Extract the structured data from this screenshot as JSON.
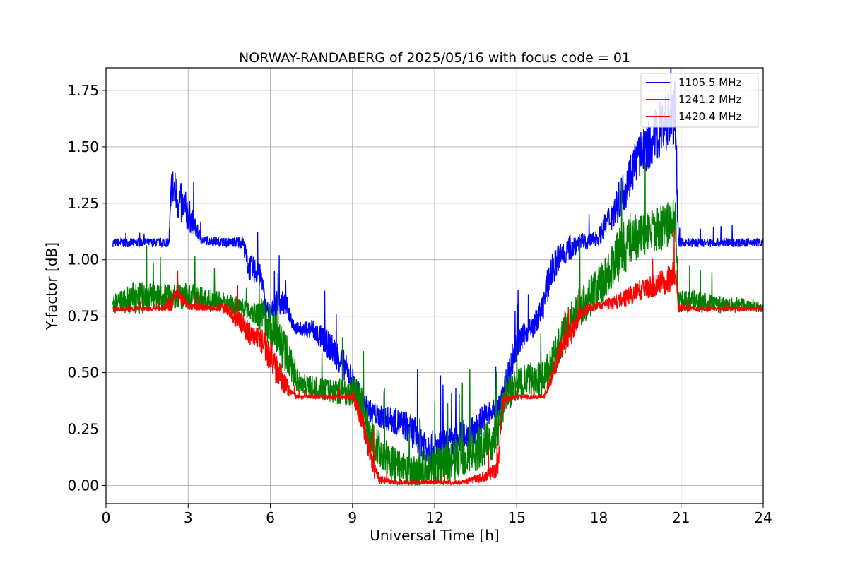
{
  "chart_data": {
    "type": "line",
    "title": "NORWAY-RANDABERG of 2025/05/16 with focus code = 01",
    "xlabel": "Universal Time [h]",
    "ylabel": "Y-factor [dB]",
    "xlim": [
      0,
      24
    ],
    "ylim": [
      -0.08,
      1.85
    ],
    "xticks": [
      0,
      3,
      6,
      9,
      12,
      15,
      18,
      21,
      24
    ],
    "xtick_labels": [
      "0",
      "3",
      "6",
      "9",
      "12",
      "15",
      "18",
      "21",
      "24"
    ],
    "yticks": [
      0.0,
      0.25,
      0.5,
      0.75,
      1.0,
      1.25,
      1.5,
      1.75
    ],
    "ytick_labels": [
      "0.00",
      "0.25",
      "0.50",
      "0.75",
      "1.00",
      "1.25",
      "1.50",
      "1.75"
    ],
    "grid": true,
    "legend_position": "top-right",
    "series": [
      {
        "name": "1105.5 MHz",
        "color": "#0000ff",
        "x": [
          0.25,
          2.3,
          2.4,
          2.7,
          3.0,
          3.3,
          3.5,
          4.5,
          5.0,
          5.2,
          5.5,
          5.7,
          5.8,
          6.0,
          6.3,
          6.6,
          6.9,
          7.2,
          7.5,
          8.0,
          8.5,
          9.0,
          9.3,
          9.6,
          10.0,
          10.5,
          11.0,
          11.5,
          12.0,
          12.5,
          13.0,
          13.5,
          13.7,
          14.0,
          14.3,
          14.5,
          14.8,
          15.0,
          15.3,
          15.6,
          15.9,
          16.2,
          16.5,
          16.8,
          17.0,
          17.3,
          17.6,
          18.0,
          18.3,
          18.6,
          19.0,
          19.3,
          19.6,
          20.0,
          20.3,
          20.6,
          20.8,
          20.9,
          21.5,
          22.5,
          23.5,
          24.0
        ],
        "y": [
          1.07,
          1.07,
          1.3,
          1.22,
          1.18,
          1.12,
          1.08,
          1.07,
          1.07,
          0.95,
          0.93,
          0.9,
          0.78,
          0.75,
          0.8,
          0.78,
          0.69,
          0.68,
          0.68,
          0.62,
          0.55,
          0.45,
          0.36,
          0.32,
          0.29,
          0.27,
          0.24,
          0.18,
          0.12,
          0.15,
          0.2,
          0.22,
          0.28,
          0.3,
          0.32,
          0.38,
          0.52,
          0.6,
          0.66,
          0.69,
          0.75,
          0.9,
          0.98,
          1.02,
          1.04,
          1.07,
          1.07,
          1.09,
          1.15,
          1.2,
          1.3,
          1.4,
          1.45,
          1.5,
          1.55,
          1.58,
          1.6,
          1.07,
          1.07,
          1.07,
          1.07,
          1.07
        ],
        "noise": [
          0.02,
          0.02,
          0.1,
          0.1,
          0.08,
          0.04,
          0.02,
          0.02,
          0.03,
          0.06,
          0.06,
          0.05,
          0.05,
          0.04,
          0.06,
          0.05,
          0.03,
          0.03,
          0.05,
          0.06,
          0.07,
          0.06,
          0.06,
          0.05,
          0.05,
          0.06,
          0.07,
          0.08,
          0.09,
          0.08,
          0.07,
          0.07,
          0.06,
          0.06,
          0.05,
          0.06,
          0.08,
          0.07,
          0.05,
          0.05,
          0.06,
          0.08,
          0.07,
          0.06,
          0.06,
          0.04,
          0.03,
          0.04,
          0.06,
          0.08,
          0.1,
          0.1,
          0.1,
          0.12,
          0.14,
          0.14,
          0.15,
          0.02,
          0.02,
          0.02,
          0.02,
          0.02
        ]
      },
      {
        "name": "1241.2 MHz",
        "color": "#008000",
        "x": [
          0.25,
          1.0,
          2.0,
          3.0,
          4.0,
          5.0,
          5.3,
          5.7,
          6.0,
          6.3,
          6.6,
          7.0,
          7.5,
          8.0,
          8.5,
          9.0,
          9.3,
          9.5,
          9.8,
          10.2,
          10.6,
          11.0,
          11.5,
          12.0,
          12.5,
          13.0,
          13.5,
          14.0,
          14.3,
          14.6,
          15.0,
          15.5,
          16.0,
          16.3,
          16.6,
          16.9,
          17.2,
          17.6,
          18.0,
          18.4,
          18.8,
          19.2,
          19.6,
          20.0,
          20.4,
          20.8,
          20.9,
          21.5,
          22.5,
          23.5,
          24.0
        ],
        "y": [
          0.79,
          0.8,
          0.82,
          0.82,
          0.8,
          0.78,
          0.76,
          0.73,
          0.68,
          0.62,
          0.55,
          0.45,
          0.42,
          0.41,
          0.4,
          0.4,
          0.35,
          0.25,
          0.16,
          0.1,
          0.06,
          0.04,
          0.05,
          0.06,
          0.07,
          0.1,
          0.13,
          0.16,
          0.22,
          0.38,
          0.42,
          0.44,
          0.45,
          0.52,
          0.6,
          0.68,
          0.75,
          0.8,
          0.85,
          0.92,
          1.0,
          1.06,
          1.08,
          1.1,
          1.12,
          1.14,
          0.8,
          0.8,
          0.79,
          0.79,
          0.78
        ],
        "noise": [
          0.04,
          0.08,
          0.06,
          0.06,
          0.05,
          0.04,
          0.05,
          0.08,
          0.1,
          0.1,
          0.09,
          0.06,
          0.05,
          0.05,
          0.06,
          0.07,
          0.08,
          0.09,
          0.09,
          0.08,
          0.08,
          0.07,
          0.08,
          0.09,
          0.09,
          0.1,
          0.1,
          0.1,
          0.09,
          0.08,
          0.08,
          0.08,
          0.08,
          0.09,
          0.09,
          0.09,
          0.09,
          0.09,
          0.1,
          0.1,
          0.12,
          0.12,
          0.1,
          0.1,
          0.1,
          0.1,
          0.05,
          0.05,
          0.04,
          0.03,
          0.02
        ]
      },
      {
        "name": "1420.4 MHz",
        "color": "#ff0000",
        "x": [
          0.25,
          2.0,
          2.4,
          2.6,
          3.0,
          4.0,
          4.4,
          4.8,
          5.0,
          5.2,
          5.5,
          5.7,
          6.0,
          6.2,
          6.5,
          6.8,
          7.0,
          7.5,
          8.0,
          8.5,
          9.0,
          9.2,
          9.5,
          9.8,
          10.0,
          10.5,
          11.0,
          11.5,
          12.0,
          12.5,
          13.0,
          13.5,
          14.0,
          14.3,
          14.5,
          14.7,
          15.0,
          16.0,
          16.3,
          16.6,
          17.0,
          17.3,
          17.6,
          18.0,
          18.5,
          19.0,
          19.5,
          20.0,
          20.5,
          20.8,
          20.9,
          21.5,
          22.5,
          23.5,
          24.0
        ],
        "y": [
          0.78,
          0.78,
          0.8,
          0.84,
          0.79,
          0.78,
          0.78,
          0.72,
          0.7,
          0.66,
          0.64,
          0.62,
          0.55,
          0.5,
          0.44,
          0.4,
          0.39,
          0.39,
          0.39,
          0.39,
          0.39,
          0.33,
          0.2,
          0.06,
          0.02,
          0.01,
          0.01,
          0.01,
          0.01,
          0.01,
          0.01,
          0.02,
          0.04,
          0.06,
          0.35,
          0.38,
          0.39,
          0.39,
          0.48,
          0.58,
          0.66,
          0.74,
          0.78,
          0.79,
          0.8,
          0.82,
          0.85,
          0.87,
          0.89,
          0.92,
          0.78,
          0.78,
          0.78,
          0.78,
          0.78
        ],
        "noise": [
          0.01,
          0.01,
          0.04,
          0.04,
          0.02,
          0.01,
          0.03,
          0.04,
          0.05,
          0.05,
          0.05,
          0.06,
          0.07,
          0.07,
          0.05,
          0.02,
          0.01,
          0.01,
          0.01,
          0.01,
          0.02,
          0.04,
          0.06,
          0.05,
          0.02,
          0.01,
          0.01,
          0.01,
          0.01,
          0.01,
          0.01,
          0.02,
          0.03,
          0.04,
          0.03,
          0.02,
          0.01,
          0.01,
          0.04,
          0.05,
          0.05,
          0.04,
          0.02,
          0.02,
          0.03,
          0.04,
          0.05,
          0.05,
          0.06,
          0.07,
          0.02,
          0.01,
          0.01,
          0.01,
          0.01
        ]
      }
    ]
  }
}
